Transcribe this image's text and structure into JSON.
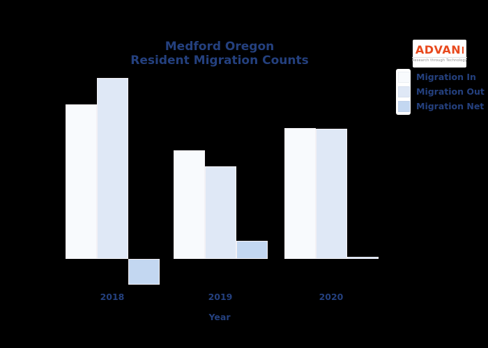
{
  "page": {
    "background_color": "#000000",
    "text_color": "#24407e"
  },
  "header": {
    "title_line1": "Medford Oregon",
    "title_line2": "Resident Migration Counts"
  },
  "logo": {
    "name": "ADVAN",
    "tagline": "Research through Technology",
    "brand_color": "#e8491d",
    "background": "#ffffff"
  },
  "legend": {
    "position": "upper right",
    "box_background": "#ffffff",
    "items": [
      {
        "label": "Migration In",
        "color": "#f8fafd"
      },
      {
        "label": "Migration Out",
        "color": "#dfe8f6"
      },
      {
        "label": "Migration Net",
        "color": "#c3d7f1"
      }
    ]
  },
  "chart_data": {
    "type": "bar",
    "title": "Medford Oregon Resident Migration Counts",
    "categories": [
      "2018",
      "2019",
      "2020"
    ],
    "xlabel": "Year",
    "ylabel": "",
    "y_axis_labeled": false,
    "grid": false,
    "legend_position": "upper right",
    "bar_edge_color": "#f3f1f5",
    "series": [
      {
        "name": "Migration In",
        "color": "#f8fafd",
        "values": [
          222,
          156,
          188
        ]
      },
      {
        "name": "Migration Out",
        "color": "#dfe8f6",
        "values": [
          260,
          133,
          187
        ]
      },
      {
        "name": "Migration Net",
        "color": "#c3d7f1",
        "values": [
          -37,
          26,
          3
        ]
      }
    ]
  }
}
